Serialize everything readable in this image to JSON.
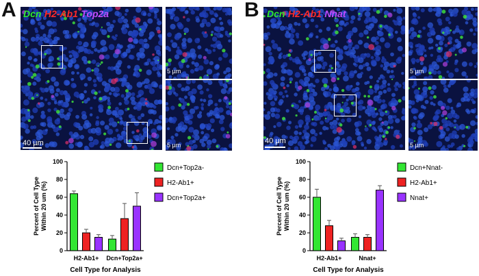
{
  "panels": [
    {
      "letter": "A",
      "channels": [
        {
          "label": "Dcn",
          "color": "#2ee82e"
        },
        {
          "label": "H2-Ab1",
          "color": "#ff2a2a"
        },
        {
          "label": "Top2a",
          "color": "#c04cff"
        }
      ],
      "main_scale": "40 µm",
      "inset_scales": [
        "5 µm",
        "5 µm"
      ]
    },
    {
      "letter": "B",
      "channels": [
        {
          "label": "Dcn",
          "color": "#2ee82e"
        },
        {
          "label": "H2-Ab1",
          "color": "#ff2a2a"
        },
        {
          "label": "Nnat",
          "color": "#c04cff"
        }
      ],
      "main_scale": "40 µm",
      "inset_scales": [
        "5 µm",
        "5 µm"
      ]
    }
  ],
  "chart_data": [
    {
      "type": "bar",
      "ylabel": "Percent of Cell Type Within 20 um (%)",
      "xlabel": "Cell Type for Analysis",
      "ylim": [
        0,
        100
      ],
      "yticks": [
        0,
        20,
        40,
        60,
        80,
        100
      ],
      "categories": [
        "H2-Ab1+",
        "Dcn+Top2a+"
      ],
      "series": [
        {
          "name": "Dcn+Top2a-",
          "color": "#33e633",
          "values": [
            64,
            13
          ],
          "errors": [
            3,
            4
          ]
        },
        {
          "name": "H2-Ab1+",
          "color": "#ee2222",
          "values": [
            20,
            36
          ],
          "errors": [
            4,
            17
          ]
        },
        {
          "name": "Dcn+Top2a+",
          "color": "#9933ff",
          "values": [
            15,
            50
          ],
          "errors": [
            3,
            15
          ]
        }
      ],
      "legend": "right"
    },
    {
      "type": "bar",
      "ylabel": "Percent of Cell Type Within 20 um (%)",
      "xlabel": "Cell Type for Analysis",
      "ylim": [
        0,
        100
      ],
      "yticks": [
        0,
        20,
        40,
        60,
        80,
        100
      ],
      "categories": [
        "H2-Ab1+",
        "Nnat+"
      ],
      "series": [
        {
          "name": "Dcn+Nnat-",
          "color": "#33e633",
          "values": [
            60,
            15
          ],
          "errors": [
            9,
            4
          ]
        },
        {
          "name": "H2-Ab1+",
          "color": "#ee2222",
          "values": [
            28,
            15
          ],
          "errors": [
            6,
            3
          ]
        },
        {
          "name": "Nnat+",
          "color": "#9933ff",
          "values": [
            11,
            68
          ],
          "errors": [
            3,
            5
          ]
        }
      ],
      "legend": "right"
    }
  ]
}
